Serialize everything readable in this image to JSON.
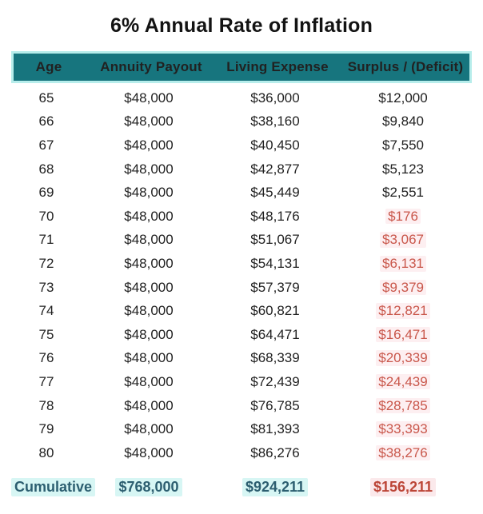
{
  "title": "6% Annual Rate of Inflation",
  "colors": {
    "header_bg": "#17757e",
    "header_border": "#b7edeb",
    "header_text": "#e8fcfa",
    "body_text": "#212121",
    "deficit_text": "#c9574b",
    "deficit_highlight": "#fdeff1",
    "cumulative_teal_text": "#2c5e70",
    "cumulative_teal_highlight": "#d7f6f4",
    "cumulative_red_text": "#bc4537",
    "cumulative_red_highlight": "#fbe9eb"
  },
  "table": {
    "headers": [
      "Age",
      "Annuity Payout",
      "Living Expense",
      "Surplus / (Deficit)"
    ],
    "rows": [
      {
        "age": "65",
        "payout": "$48,000",
        "expense": "$36,000",
        "surplus": "$12,000",
        "deficit": false
      },
      {
        "age": "66",
        "payout": "$48,000",
        "expense": "$38,160",
        "surplus": "$9,840",
        "deficit": false
      },
      {
        "age": "67",
        "payout": "$48,000",
        "expense": "$40,450",
        "surplus": "$7,550",
        "deficit": false
      },
      {
        "age": "68",
        "payout": "$48,000",
        "expense": "$42,877",
        "surplus": "$5,123",
        "deficit": false
      },
      {
        "age": "69",
        "payout": "$48,000",
        "expense": "$45,449",
        "surplus": "$2,551",
        "deficit": false
      },
      {
        "age": "70",
        "payout": "$48,000",
        "expense": "$48,176",
        "surplus": "$176",
        "deficit": true
      },
      {
        "age": "71",
        "payout": "$48,000",
        "expense": "$51,067",
        "surplus": "$3,067",
        "deficit": true
      },
      {
        "age": "72",
        "payout": "$48,000",
        "expense": "$54,131",
        "surplus": "$6,131",
        "deficit": true
      },
      {
        "age": "73",
        "payout": "$48,000",
        "expense": "$57,379",
        "surplus": "$9,379",
        "deficit": true
      },
      {
        "age": "74",
        "payout": "$48,000",
        "expense": "$60,821",
        "surplus": "$12,821",
        "deficit": true
      },
      {
        "age": "75",
        "payout": "$48,000",
        "expense": "$64,471",
        "surplus": "$16,471",
        "deficit": true
      },
      {
        "age": "76",
        "payout": "$48,000",
        "expense": "$68,339",
        "surplus": "$20,339",
        "deficit": true
      },
      {
        "age": "77",
        "payout": "$48,000",
        "expense": "$72,439",
        "surplus": "$24,439",
        "deficit": true
      },
      {
        "age": "78",
        "payout": "$48,000",
        "expense": "$76,785",
        "surplus": "$28,785",
        "deficit": true
      },
      {
        "age": "79",
        "payout": "$48,000",
        "expense": "$81,393",
        "surplus": "$33,393",
        "deficit": true
      },
      {
        "age": "80",
        "payout": "$48,000",
        "expense": "$86,276",
        "surplus": "$38,276",
        "deficit": true
      }
    ],
    "cumulative": {
      "label": "Cumulative",
      "payout": "$768,000",
      "expense": "$924,211",
      "surplus": "$156,211"
    }
  },
  "chart_data": {
    "type": "table",
    "title": "6% Annual Rate of Inflation",
    "columns": [
      "Age",
      "Annuity Payout",
      "Living Expense",
      "Surplus / (Deficit)"
    ],
    "rows": [
      [
        65,
        48000,
        36000,
        12000
      ],
      [
        66,
        48000,
        38160,
        9840
      ],
      [
        67,
        48000,
        40450,
        7550
      ],
      [
        68,
        48000,
        42877,
        5123
      ],
      [
        69,
        48000,
        45449,
        2551
      ],
      [
        70,
        48000,
        48176,
        -176
      ],
      [
        71,
        48000,
        51067,
        -3067
      ],
      [
        72,
        48000,
        54131,
        -6131
      ],
      [
        73,
        48000,
        57379,
        -9379
      ],
      [
        74,
        48000,
        60821,
        -12821
      ],
      [
        75,
        48000,
        64471,
        -16471
      ],
      [
        76,
        48000,
        68339,
        -20339
      ],
      [
        77,
        48000,
        72439,
        -24439
      ],
      [
        78,
        48000,
        76785,
        -28785
      ],
      [
        79,
        48000,
        81393,
        -33393
      ],
      [
        80,
        48000,
        86276,
        -38276
      ]
    ],
    "cumulative": {
      "annuity_payout": 768000,
      "living_expense": 924211,
      "surplus_deficit": -156211
    },
    "notes": "Deficit values (ages 70-80 and cumulative deficit) are rendered in red with light pink highlight; cumulative totals highlighted in light cyan."
  }
}
